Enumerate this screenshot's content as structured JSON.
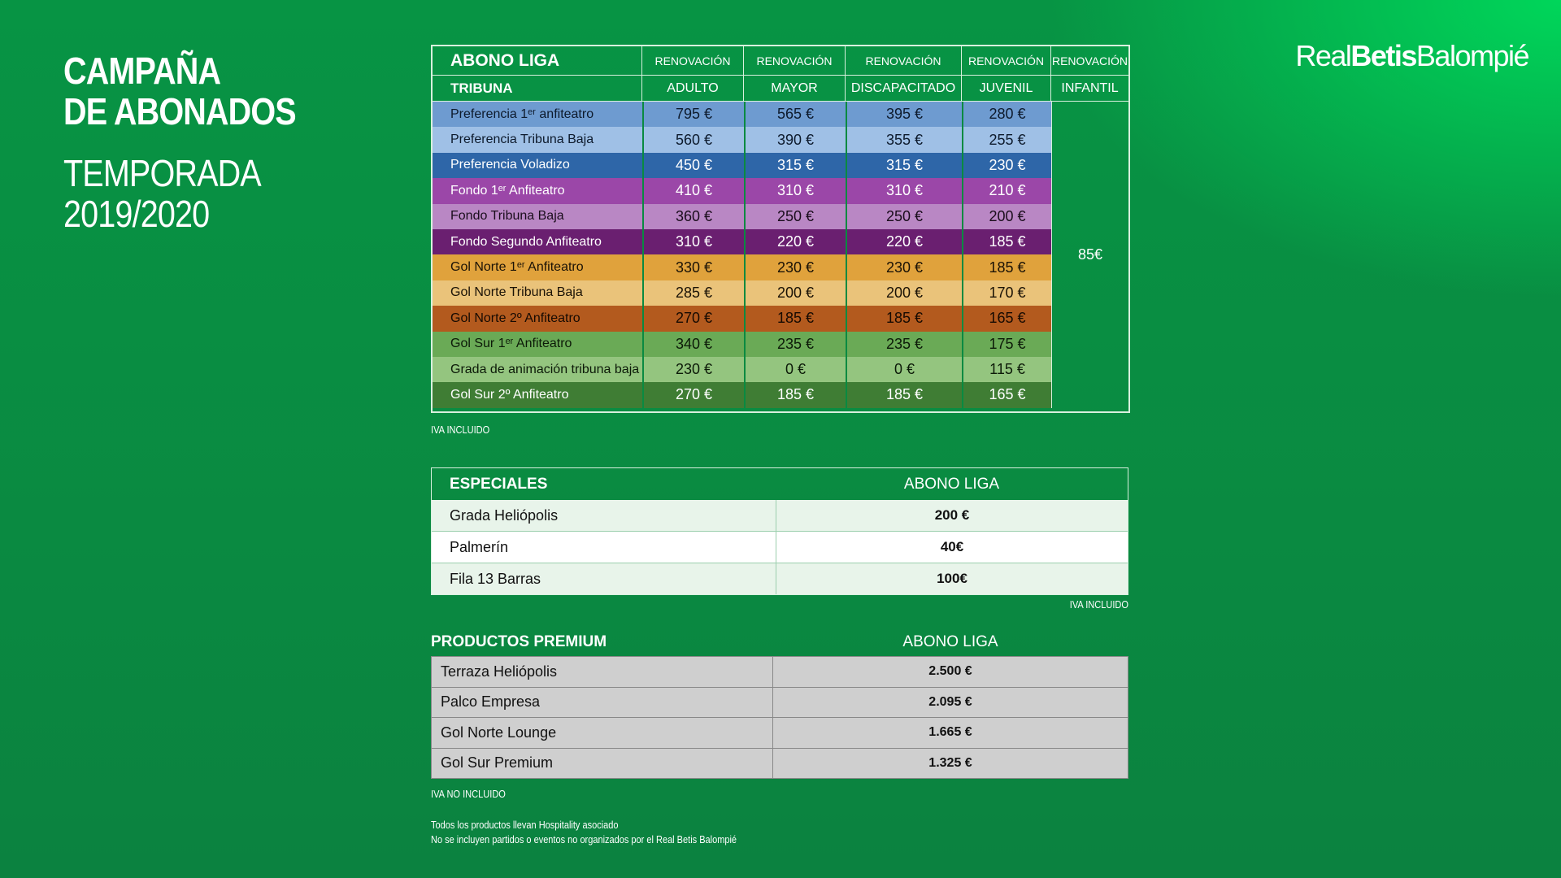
{
  "title": {
    "line1": "CAMPAÑA",
    "line2": "DE ABONADOS",
    "line3": "TEMPORADA",
    "line4": "2019/2020"
  },
  "logo": {
    "part1": "Real",
    "part2": "Betis",
    "part3": "Balompié"
  },
  "abono_table": {
    "header_title": "ABONO LIGA",
    "header_sub": "TRIBUNA",
    "renewal_label": "RENOVACIÓN",
    "columns": [
      "ADULTO",
      "MAYOR",
      "DISCAPACITADO",
      "JUVENIL",
      "INFANTIL"
    ],
    "infantil_price": "85€",
    "rows": [
      {
        "name": "Preferencia 1ᵉʳ anfiteatro",
        "prices": [
          "795 €",
          "565 €",
          "395 €",
          "280 €"
        ],
        "color": "#6e9bd0",
        "text": "#0d1a2c"
      },
      {
        "name": "Preferencia Tribuna Baja",
        "prices": [
          "560 €",
          "390 €",
          "355 €",
          "255 €"
        ],
        "color": "#9fc0e6",
        "text": "#0d1a2c"
      },
      {
        "name": "Preferencia Voladizo",
        "prices": [
          "450 €",
          "315 €",
          "315 €",
          "230 €"
        ],
        "color": "#2e66a8",
        "text": "#ffffff"
      },
      {
        "name": "Fondo 1ᵉʳ Anfiteatro",
        "prices": [
          "410 €",
          "310 €",
          "310 €",
          "210 €"
        ],
        "color": "#9b47a8",
        "text": "#ffffff"
      },
      {
        "name": "Fondo Tribuna Baja",
        "prices": [
          "360 €",
          "250 €",
          "250 €",
          "200 €"
        ],
        "color": "#b987c4",
        "text": "#1a0d1c"
      },
      {
        "name": "Fondo Segundo Anfiteatro",
        "prices": [
          "310 €",
          "220 €",
          "220 €",
          "185 €"
        ],
        "color": "#6a1f70",
        "text": "#ffffff"
      },
      {
        "name": "Gol Norte 1ᵉʳ Anfiteatro",
        "prices": [
          "330 €",
          "230 €",
          "230 €",
          "185 €"
        ],
        "color": "#e0a23c",
        "text": "#1a1206"
      },
      {
        "name": "Gol Norte Tribuna Baja",
        "prices": [
          "285 €",
          "200 €",
          "200 €",
          "170 €"
        ],
        "color": "#eac37a",
        "text": "#1a1206"
      },
      {
        "name": "Gol Norte 2º Anfiteatro",
        "prices": [
          "270 €",
          "185 €",
          "185 €",
          "165 €"
        ],
        "color": "#b35a1e",
        "text": "#160a02"
      },
      {
        "name": "Gol Sur 1ᵉʳ Anfiteatro",
        "prices": [
          "340 €",
          "235 €",
          "235 €",
          "175 €"
        ],
        "color": "#6aaa56",
        "text": "#0c1a08"
      },
      {
        "name": "Grada de animación tribuna baja",
        "prices": [
          "230 €",
          "0 €",
          "0 €",
          "115 €"
        ],
        "color": "#94c57f",
        "text": "#0c1a08"
      },
      {
        "name": "Gol Sur 2º Anfiteatro",
        "prices": [
          "270 €",
          "185 €",
          "185 €",
          "165 €"
        ],
        "color": "#3f7d34",
        "text": "#ffffff"
      }
    ],
    "iva_note": "IVA INCLUIDO"
  },
  "especiales": {
    "header": "ESPECIALES",
    "col_header": "ABONO LIGA",
    "rows": [
      {
        "name": "Grada Heliópolis",
        "price": "200 €",
        "bg": "#e8f4ea"
      },
      {
        "name": "Palmerín",
        "price": "40€",
        "bg": "#ffffff"
      },
      {
        "name": "Fila 13 Barras",
        "price": "100€",
        "bg": "#e8f4ea"
      }
    ],
    "iva_note": "IVA INCLUIDO"
  },
  "premium": {
    "header": "PRODUCTOS PREMIUM",
    "col_header": "ABONO LIGA",
    "rows": [
      {
        "name": "Terraza Heliópolis",
        "price": "2.500 €"
      },
      {
        "name": "Palco Empresa",
        "price": "2.095 €"
      },
      {
        "name": "Gol Norte Lounge",
        "price": "1.665 €"
      },
      {
        "name": "Gol Sur Premium",
        "price": "1.325 €"
      }
    ],
    "iva_note": "IVA NO INCLUIDO"
  },
  "footnotes": {
    "line1": "Todos los productos llevan Hospitality asociado",
    "line2": "No se incluyen partidos o eventos no organizados por el Real Betis Balompié"
  }
}
